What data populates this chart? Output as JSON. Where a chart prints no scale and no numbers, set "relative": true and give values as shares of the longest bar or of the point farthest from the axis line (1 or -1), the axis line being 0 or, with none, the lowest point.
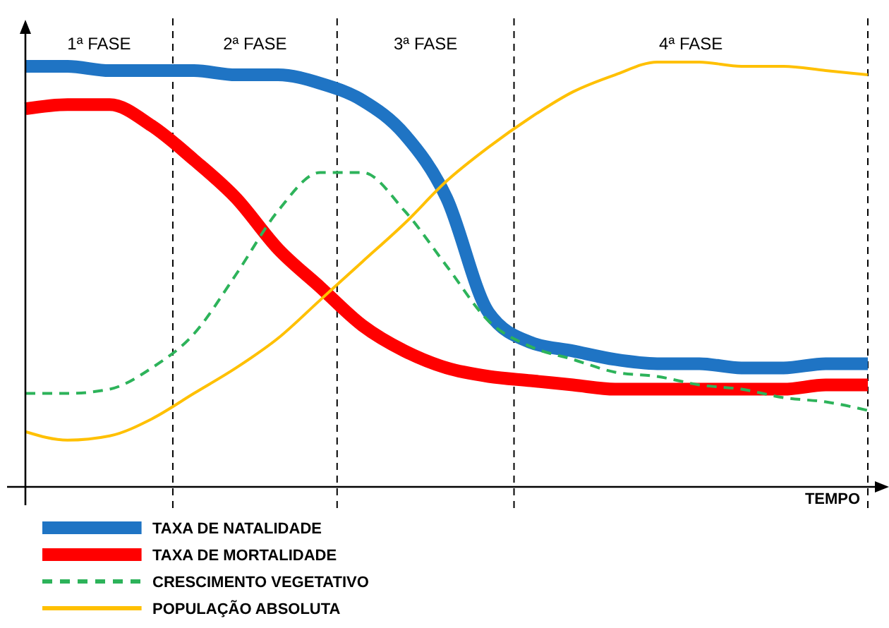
{
  "chart_data": {
    "type": "line",
    "relative": true,
    "xlabel": "TEMPO",
    "categories": [
      null,
      null,
      null,
      null,
      null,
      null,
      null,
      null,
      null,
      null,
      null,
      null,
      null,
      null,
      null,
      null,
      null,
      null,
      null,
      null,
      null
    ],
    "series": [
      {
        "name": "TAXA DE NATALIDADE",
        "color": "#1f74c4",
        "values": [
          0.99,
          0.99,
          0.98,
          0.98,
          0.98,
          0.97,
          0.97,
          0.95,
          0.91,
          0.83,
          0.68,
          0.41,
          0.34,
          0.32,
          0.3,
          0.29,
          0.29,
          0.28,
          0.28,
          0.29,
          0.29
        ]
      },
      {
        "name": "TAXA DE MORTALIDADE",
        "color": "#ff0000",
        "values": [
          0.89,
          0.9,
          0.9,
          0.85,
          0.77,
          0.68,
          0.56,
          0.47,
          0.38,
          0.32,
          0.28,
          0.26,
          0.25,
          0.24,
          0.23,
          0.23,
          0.23,
          0.23,
          0.23,
          0.24,
          0.24
        ]
      },
      {
        "name": "CRESCIMENTO VEGETATIVO",
        "color": "#2db35a",
        "line_style": "dashed",
        "values": [
          0.22,
          0.22,
          0.23,
          0.28,
          0.36,
          0.5,
          0.65,
          0.74,
          0.74,
          0.65,
          0.52,
          0.39,
          0.33,
          0.3,
          0.27,
          0.26,
          0.24,
          0.23,
          0.21,
          0.2,
          0.18
        ]
      },
      {
        "name": "POPULAÇÃO ABSOLUTA",
        "color": "#ffc000",
        "values": [
          0.13,
          0.11,
          0.12,
          0.16,
          0.22,
          0.28,
          0.35,
          0.44,
          0.53,
          0.62,
          0.72,
          0.8,
          0.87,
          0.93,
          0.97,
          1.0,
          1.0,
          0.99,
          0.99,
          0.98,
          0.97
        ]
      }
    ],
    "annotations": [
      "1ª FASE",
      "2ª FASE",
      "3ª FASE",
      "4ª FASE"
    ],
    "legend": "bottom left",
    "grid": false,
    "marker": "none"
  }
}
